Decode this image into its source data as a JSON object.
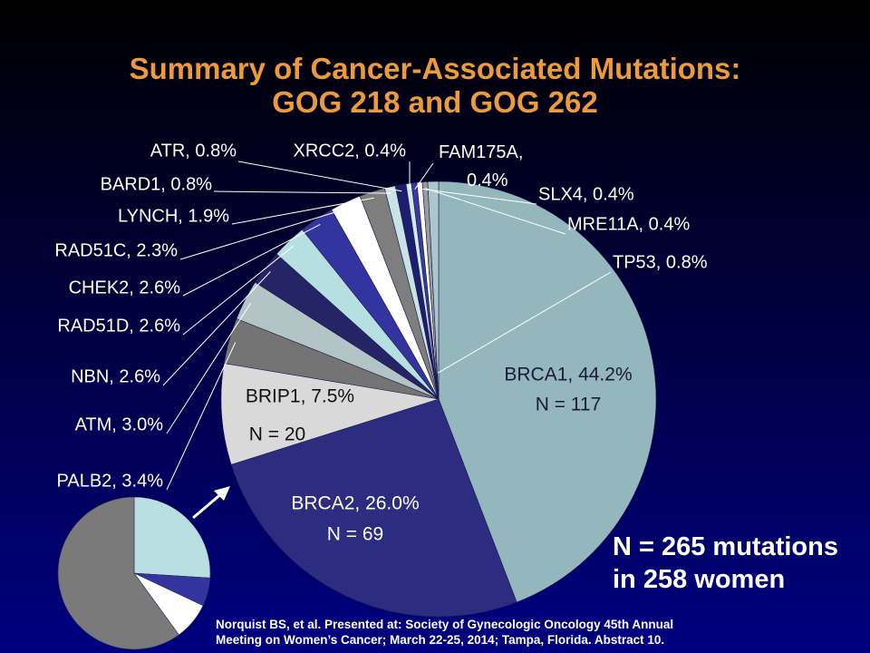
{
  "title": {
    "line1": "Summary of Cancer-Associated Mutations:",
    "line2": "GOG 218 and GOG 262"
  },
  "summary": {
    "line1": "N = 265 mutations",
    "line2": "in 258 women"
  },
  "citation": {
    "line1": "Norquist BS, et al. Presented at:  Society of Gynecologic Oncology 45th Annual",
    "line2": "Meeting on Women’s Cancer; March 22-25, 2014; Tampa, Florida. Abstract 10."
  },
  "chart_data": {
    "type": "pie",
    "slices": [
      {
        "gene": "BRCA1",
        "pct": 44.2,
        "n": 117,
        "label": "BRCA1, 44.2%",
        "n_label": "N = 117",
        "color": "#94b7bd"
      },
      {
        "gene": "BRCA2",
        "pct": 26.0,
        "n": 69,
        "label": "BRCA2, 26.0%",
        "n_label": "N = 69",
        "color": "#2c2c80"
      },
      {
        "gene": "BRIP1",
        "pct": 7.5,
        "n": 20,
        "label": "BRIP1, 7.5%",
        "n_label": "N = 20",
        "color": "#d9d9d9"
      },
      {
        "gene": "PALB2",
        "pct": 3.4,
        "label": "PALB2, 3.4%",
        "color": "#747474"
      },
      {
        "gene": "ATM",
        "pct": 3.0,
        "label": "ATM, 3.0%",
        "color": "#b2c4c6"
      },
      {
        "gene": "NBN",
        "pct": 2.6,
        "label": "NBN, 2.6%",
        "color": "#242466"
      },
      {
        "gene": "RAD51D",
        "pct": 2.6,
        "label": "RAD51D, 2.6%",
        "color": "#b6dfe2"
      },
      {
        "gene": "CHEK2",
        "pct": 2.6,
        "label": "CHEK2, 2.6%",
        "color": "#3434a0"
      },
      {
        "gene": "RAD51C",
        "pct": 2.3,
        "label": "RAD51C, 2.3%",
        "color": "#ffffff"
      },
      {
        "gene": "LYNCH",
        "pct": 1.9,
        "label": "LYNCH, 1.9%",
        "color": "#7e7e7e"
      },
      {
        "gene": "BARD1",
        "pct": 0.8,
        "label": "BARD1, 0.8%",
        "color": "#c8e2e6"
      },
      {
        "gene": "ATR",
        "pct": 0.8,
        "label": "ATR, 0.8%",
        "color": "#1e1e6e"
      },
      {
        "gene": "XRCC2",
        "pct": 0.4,
        "label": "XRCC2, 0.4%",
        "color": "#d2e8ec"
      },
      {
        "gene": "FAM175A",
        "pct": 0.4,
        "label_lines": [
          "FAM175A,",
          "0.4%"
        ],
        "color": "#3a3a9e"
      },
      {
        "gene": "SLX4",
        "pct": 0.4,
        "label": "SLX4, 0.4%",
        "color": "#ffffff"
      },
      {
        "gene": "MRE11A",
        "pct": 0.4,
        "label": "MRE11A, 0.4%",
        "color": "#9a9a9a"
      },
      {
        "gene": "TP53",
        "pct": 0.8,
        "label": "TP53,  0.8%",
        "color": "#aac8cc"
      }
    ],
    "inset": {
      "type": "pie",
      "note": "small pie of the same distribution; BRCA1/BRCA2/BRIP1 merged",
      "slices": [
        {
          "value": 26.0,
          "color": "#b9dfe3"
        },
        {
          "value": 6.0,
          "color": "#3434a0"
        },
        {
          "value": 8.0,
          "color": "#ffffff"
        },
        {
          "value": 60.0,
          "color": "#7a7a7a"
        }
      ]
    }
  }
}
